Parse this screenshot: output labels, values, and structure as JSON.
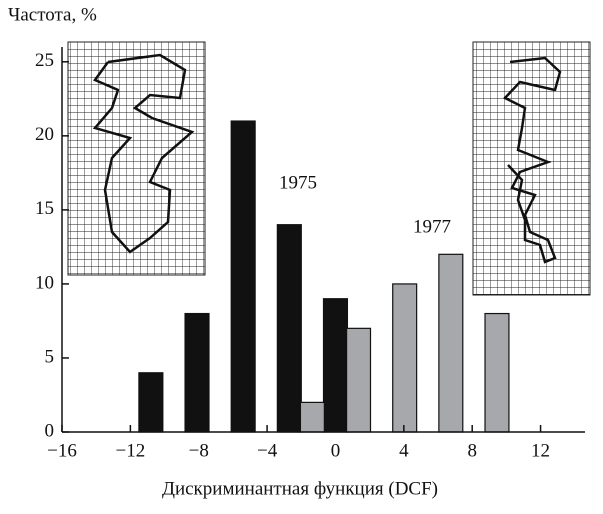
{
  "chart_data": {
    "type": "bar",
    "y_label": "Частота, %",
    "x_label": "Дискриминантная функция (DCF)",
    "annotations": [
      "1975",
      "1977"
    ],
    "series": [
      {
        "name": "1975",
        "color": "#111111",
        "x": [
          -10.8,
          -8.1,
          -5.4,
          -2.7,
          0
        ],
        "values": [
          4,
          8,
          21,
          14,
          9
        ]
      },
      {
        "name": "1977",
        "color": "#a6a8ab",
        "x": [
          -1.35,
          1.35,
          4.05,
          6.75,
          9.45
        ],
        "values": [
          2,
          7,
          10,
          12,
          8
        ]
      }
    ],
    "xlim": [
      -16,
      14.6
    ],
    "xticks": [
      {
        "value": -16,
        "label": "−16"
      },
      {
        "value": -12,
        "label": "−12"
      },
      {
        "value": -8,
        "label": "−8"
      },
      {
        "value": -4,
        "label": "−4"
      },
      0,
      4,
      8,
      12
    ],
    "ylim": [
      0,
      26
    ],
    "yticks": [
      0,
      5,
      10,
      15,
      20,
      25
    ]
  }
}
